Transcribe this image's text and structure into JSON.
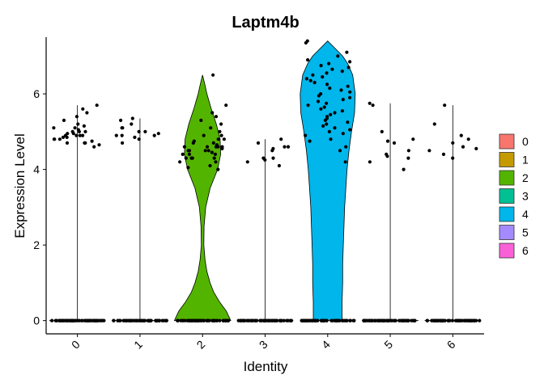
{
  "chart_data": {
    "type": "violin",
    "title": "Laptm4b",
    "xlabel": "Identity",
    "ylabel": "Expression Level",
    "ylim": [
      -0.35,
      7.5
    ],
    "yticks": [
      0,
      2,
      4,
      6
    ],
    "legend_position": "right",
    "categories": [
      "0",
      "1",
      "2",
      "3",
      "4",
      "5",
      "6"
    ],
    "colors": {
      "0": "#F8766D",
      "1": "#C49A00",
      "2": "#53B400",
      "3": "#00C094",
      "4": "#00B6EB",
      "5": "#A58AFF",
      "6": "#FB61D7"
    },
    "series": [
      {
        "name": "0",
        "max": 5.7,
        "violin_width_at_zero": 0.45,
        "nonzero_values": [
          4.9,
          4.8,
          5.0,
          5.1,
          4.7,
          4.85,
          4.95,
          5.3,
          4.75,
          4.9,
          5.0,
          4.6,
          5.6,
          5.5,
          4.8,
          4.9,
          5.1,
          5.2,
          4.7,
          4.95,
          5.4,
          4.65,
          4.85,
          5.05,
          5.7,
          4.9,
          4.8,
          5.15,
          4.7,
          5.0
        ]
      },
      {
        "name": "1",
        "max": 5.35,
        "violin_width_at_zero": 0.45,
        "nonzero_values": [
          4.9,
          5.2,
          5.0,
          4.8,
          5.1,
          4.95,
          5.35,
          4.9,
          5.0,
          4.85,
          5.3,
          4.7,
          5.1,
          4.9
        ]
      },
      {
        "name": "2",
        "max": 6.5,
        "violin": [
          [
            0.0,
            0.45
          ],
          [
            0.25,
            0.38
          ],
          [
            0.5,
            0.27
          ],
          [
            0.75,
            0.18
          ],
          [
            1.0,
            0.12
          ],
          [
            1.3,
            0.07
          ],
          [
            1.6,
            0.04
          ],
          [
            2.0,
            0.02
          ],
          [
            2.5,
            0.025
          ],
          [
            3.0,
            0.05
          ],
          [
            3.5,
            0.12
          ],
          [
            4.0,
            0.24
          ],
          [
            4.4,
            0.29
          ],
          [
            4.8,
            0.28
          ],
          [
            5.2,
            0.22
          ],
          [
            5.6,
            0.14
          ],
          [
            6.0,
            0.07
          ],
          [
            6.3,
            0.03
          ],
          [
            6.5,
            0.0
          ]
        ],
        "nonzero_values": [
          6.5,
          5.7,
          5.4,
          5.3,
          5.1,
          4.9,
          4.7,
          4.6,
          4.6,
          4.5,
          4.5,
          4.4,
          4.6,
          4.3,
          4.2,
          4.1,
          4.3,
          4.0,
          4.7,
          4.8,
          4.9,
          5.2,
          4.5,
          4.6,
          4.4,
          4.55,
          4.65,
          4.3,
          4.75,
          5.0,
          4.2,
          4.45,
          5.5,
          4.05,
          4.8,
          4.6,
          4.4,
          4.5,
          4.3
        ]
      },
      {
        "name": "3",
        "max": 4.8,
        "violin_width_at_zero": 0.45,
        "nonzero_values": [
          4.8,
          4.6,
          4.5,
          4.3,
          4.2,
          4.1,
          4.7,
          4.55,
          4.25,
          4.6,
          4.3
        ]
      },
      {
        "name": "4",
        "max": 7.4,
        "violin": [
          [
            0.0,
            0.23
          ],
          [
            0.5,
            0.23
          ],
          [
            1.0,
            0.24
          ],
          [
            1.5,
            0.24
          ],
          [
            2.0,
            0.25
          ],
          [
            2.5,
            0.26
          ],
          [
            3.0,
            0.27
          ],
          [
            3.5,
            0.29
          ],
          [
            4.0,
            0.31
          ],
          [
            4.5,
            0.34
          ],
          [
            5.0,
            0.38
          ],
          [
            5.5,
            0.43
          ],
          [
            6.0,
            0.44
          ],
          [
            6.5,
            0.4
          ],
          [
            6.8,
            0.32
          ],
          [
            7.0,
            0.24
          ],
          [
            7.2,
            0.12
          ],
          [
            7.4,
            0.0
          ]
        ],
        "nonzero_values": [
          7.4,
          7.35,
          7.1,
          6.9,
          6.8,
          6.7,
          6.6,
          6.5,
          6.4,
          6.3,
          6.2,
          6.1,
          6.0,
          5.9,
          5.8,
          5.7,
          5.6,
          5.5,
          5.4,
          5.3,
          5.2,
          5.1,
          5.0,
          4.9,
          4.8,
          4.6,
          4.5,
          4.2,
          6.75,
          6.55,
          6.35,
          6.15,
          5.95,
          5.75,
          5.55,
          5.35,
          5.15,
          4.95,
          6.05,
          6.25,
          6.45,
          5.65,
          5.85,
          5.45,
          5.25,
          5.05,
          6.85,
          4.75,
          6.65,
          7.0
        ]
      },
      {
        "name": "5",
        "max": 5.75,
        "violin_width_at_zero": 0.45,
        "nonzero_values": [
          5.75,
          5.7,
          5.0,
          4.8,
          4.7,
          4.5,
          4.4,
          4.3,
          4.2,
          4.0,
          4.75,
          4.35
        ]
      },
      {
        "name": "6",
        "max": 5.7,
        "violin_width_at_zero": 0.45,
        "nonzero_values": [
          5.7,
          5.2,
          4.9,
          4.8,
          4.7,
          4.6,
          4.5,
          4.4,
          4.3,
          4.55
        ]
      }
    ]
  }
}
